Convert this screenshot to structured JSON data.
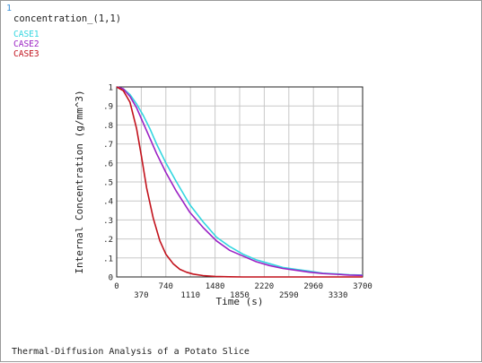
{
  "window_number": "1",
  "plot_variable": "concentration_(1,1)",
  "footer_title": "Thermal-Diffusion Analysis of a Potato Slice",
  "colors": {
    "CASE1": "#33d6e0",
    "CASE2": "#9b22c4",
    "CASE3": "#c2121c",
    "grid": "#c8c8c8",
    "axis": "#222222"
  },
  "chart_data": {
    "type": "line",
    "xlabel": "Time (s)",
    "ylabel": "Internal Concentration (g/mm^3)",
    "xlim": [
      0,
      3700
    ],
    "ylim": [
      0,
      1
    ],
    "x_ticks_upper": [
      "0",
      "740",
      "1480",
      "2220",
      "2960",
      "3700"
    ],
    "x_ticks_lower": [
      "370",
      "1110",
      "1850",
      "2590",
      "3330"
    ],
    "x_tick_values_upper": [
      0,
      740,
      1480,
      2220,
      2960,
      3700
    ],
    "x_tick_values_lower": [
      370,
      1110,
      1850,
      2590,
      3330
    ],
    "y_ticks": [
      "0",
      ".1",
      ".2",
      ".3",
      ".4",
      ".5",
      ".6",
      ".7",
      ".8",
      ".9",
      "1"
    ],
    "y_tick_values": [
      0,
      0.1,
      0.2,
      0.3,
      0.4,
      0.5,
      0.6,
      0.7,
      0.8,
      0.9,
      1.0
    ],
    "grid": true,
    "legend_placement": "top-left",
    "series": [
      {
        "name": "CASE1",
        "x": [
          0,
          100,
          200,
          300,
          400,
          500,
          600,
          740,
          900,
          1100,
          1300,
          1500,
          1700,
          1900,
          2100,
          2300,
          2500,
          2700,
          2900,
          3100,
          3300,
          3500,
          3700
        ],
        "y": [
          1.0,
          0.99,
          0.96,
          0.91,
          0.85,
          0.78,
          0.7,
          0.6,
          0.5,
          0.38,
          0.29,
          0.21,
          0.16,
          0.12,
          0.09,
          0.07,
          0.05,
          0.04,
          0.03,
          0.02,
          0.016,
          0.012,
          0.01
        ]
      },
      {
        "name": "CASE2",
        "x": [
          0,
          100,
          200,
          300,
          400,
          500,
          600,
          740,
          900,
          1100,
          1300,
          1500,
          1700,
          1900,
          2100,
          2300,
          2500,
          2700,
          2900,
          3100,
          3300,
          3500,
          3700
        ],
        "y": [
          1.0,
          0.99,
          0.95,
          0.89,
          0.81,
          0.73,
          0.65,
          0.55,
          0.45,
          0.34,
          0.26,
          0.19,
          0.14,
          0.11,
          0.08,
          0.06,
          0.045,
          0.035,
          0.025,
          0.018,
          0.014,
          0.01,
          0.008
        ]
      },
      {
        "name": "CASE3",
        "x": [
          0,
          100,
          200,
          300,
          370,
          450,
          550,
          650,
          740,
          850,
          950,
          1050,
          1150,
          1300,
          1480,
          1700,
          1900,
          2200,
          2600,
          3000,
          3400,
          3700
        ],
        "y": [
          1.0,
          0.98,
          0.92,
          0.78,
          0.64,
          0.47,
          0.31,
          0.19,
          0.12,
          0.07,
          0.04,
          0.025,
          0.015,
          0.007,
          0.003,
          0.001,
          0.0,
          0.0,
          0.0,
          0.0,
          0.0,
          0.0
        ]
      }
    ]
  }
}
